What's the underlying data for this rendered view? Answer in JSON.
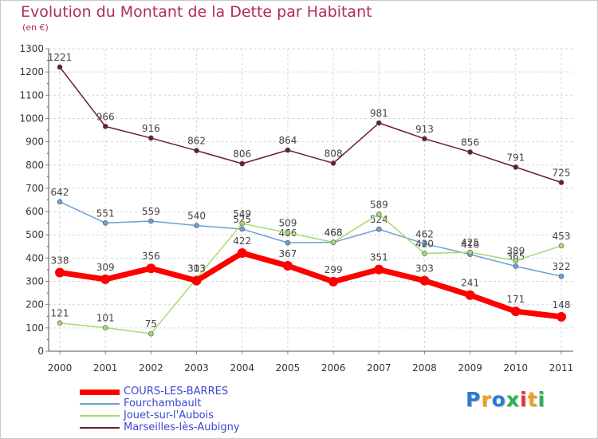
{
  "header": {
    "title": "Evolution du Montant de la Dette par Habitant",
    "subtitle": "(en €)"
  },
  "logo": {
    "letters": [
      "P",
      "r",
      "o",
      "x",
      "i",
      "t",
      "i"
    ],
    "colors": [
      "#2b7bd6",
      "#f0a020",
      "#2b7bd6",
      "#2bb24c",
      "#e8303a",
      "#f0a020",
      "#2bb24c"
    ]
  },
  "chart_data": {
    "type": "line",
    "title": "Evolution du Montant de la Dette par Habitant",
    "subtitle": "(en €)",
    "xlabel": "",
    "ylabel": "",
    "ylim": [
      0,
      1300
    ],
    "yticks": [
      0,
      100,
      200,
      300,
      400,
      500,
      600,
      700,
      800,
      900,
      1000,
      1100,
      1200,
      1300
    ],
    "x": [
      "2000",
      "2001",
      "2002",
      "2003",
      "2004",
      "2005",
      "2006",
      "2007",
      "2008",
      "2009",
      "2010",
      "2011"
    ],
    "grid": true,
    "legend_position": "bottom-left",
    "series": [
      {
        "name": "Marseilles-lès-Aubigny",
        "color": "#6b1e24",
        "width": 1.5,
        "values": [
          1221,
          966,
          916,
          862,
          806,
          864,
          808,
          981,
          913,
          856,
          791,
          725
        ]
      },
      {
        "name": "Fourchambault",
        "color": "#6aa1d6",
        "width": 1.5,
        "values": [
          642,
          551,
          559,
          540,
          525,
          466,
          468,
          524,
          462,
          416,
          365,
          322
        ]
      },
      {
        "name": "Jouet-sur-l'Aubois",
        "color": "#a6da6e",
        "width": 1.5,
        "values": [
          121,
          101,
          75,
          313,
          549,
          509,
          468,
          589,
          420,
          425,
          389,
          453
        ]
      },
      {
        "name": "COURS-LES-BARRES",
        "color": "#ff0000",
        "width": 7,
        "values": [
          338,
          309,
          356,
          303,
          422,
          367,
          299,
          351,
          303,
          241,
          171,
          148
        ]
      }
    ],
    "legend_order": [
      "COURS-LES-BARRES",
      "Fourchambault",
      "Jouet-sur-l'Aubois",
      "Marseilles-lès-Aubigny"
    ]
  }
}
